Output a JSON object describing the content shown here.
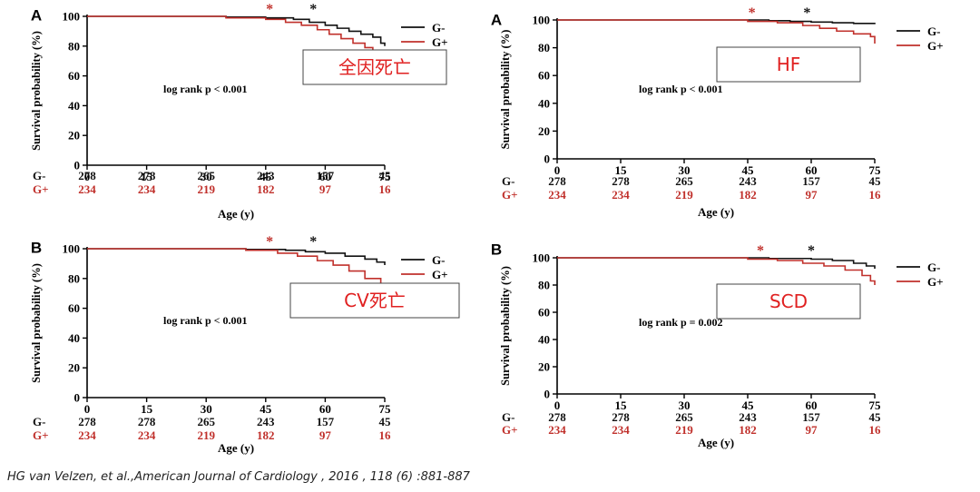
{
  "colors": {
    "g_minus": "#111111",
    "g_plus": "#c0302b",
    "box_text": "#e02020",
    "box_border": "#444444"
  },
  "citation": "HG van Velzen, et al.,American Journal of Cardiology , 2016 , 118 (6) :881-887",
  "chart_data": [
    {
      "type": "line",
      "panel_letter": "A",
      "box_label": "全因死亡",
      "ylabel": "Survival probability (%)",
      "xlabel": "Age (y)",
      "xlim": [
        0,
        75
      ],
      "ylim": [
        0,
        100
      ],
      "x_ticks": [
        0,
        15,
        30,
        45,
        60,
        75
      ],
      "y_ticks": [
        0,
        20,
        40,
        60,
        80,
        100
      ],
      "annotation": "log rank p < 0.001",
      "legend": [
        "G-",
        "G+"
      ],
      "risk_table": {
        "G-": [
          278,
          278,
          265,
          243,
          157,
          45
        ],
        "G+": [
          234,
          234,
          219,
          182,
          97,
          16
        ]
      },
      "markers": {
        "G+": 46,
        "G-": 57
      },
      "series": [
        {
          "name": "G-",
          "x": [
            0,
            20,
            35,
            45,
            52,
            56,
            60,
            63,
            66,
            69,
            72,
            74,
            75
          ],
          "y": [
            100,
            100,
            99.5,
            99,
            98,
            96,
            94,
            92,
            90,
            88,
            86,
            82,
            80
          ]
        },
        {
          "name": "G+",
          "x": [
            0,
            25,
            35,
            45,
            50,
            54,
            58,
            61,
            64,
            67,
            70,
            72,
            74
          ],
          "y": [
            100,
            100,
            99,
            98,
            96,
            94,
            91,
            88,
            85,
            82,
            79,
            76,
            74
          ]
        }
      ]
    },
    {
      "type": "line",
      "panel_letter": "A",
      "box_label": "HF",
      "ylabel": "Survival probability (%)",
      "xlabel": "Age (y)",
      "xlim": [
        0,
        75
      ],
      "ylim": [
        0,
        100
      ],
      "x_ticks": [
        0,
        15,
        30,
        45,
        60,
        75
      ],
      "y_ticks": [
        0,
        20,
        40,
        60,
        80,
        100
      ],
      "annotation": "log rank p < 0.001",
      "legend": [
        "G-",
        "G+"
      ],
      "risk_table": {
        "G-": [
          278,
          278,
          265,
          243,
          157,
          45
        ],
        "G+": [
          234,
          234,
          219,
          182,
          97,
          16
        ]
      },
      "markers": {
        "G+": 46,
        "G-": 59
      },
      "series": [
        {
          "name": "G-",
          "x": [
            0,
            40,
            50,
            55,
            60,
            65,
            70,
            75
          ],
          "y": [
            100,
            100,
            99.5,
            99,
            98.5,
            98,
            97.5,
            97
          ]
        },
        {
          "name": "G+",
          "x": [
            0,
            35,
            45,
            52,
            58,
            62,
            66,
            70,
            74,
            75
          ],
          "y": [
            100,
            100,
            99,
            98,
            96,
            94,
            92,
            90,
            88,
            83
          ]
        }
      ]
    },
    {
      "type": "line",
      "panel_letter": "B",
      "box_label": "CV死亡",
      "ylabel": "Survival probability (%)",
      "xlabel": "Age (y)",
      "xlim": [
        0,
        75
      ],
      "ylim": [
        0,
        100
      ],
      "x_ticks": [
        0,
        15,
        30,
        45,
        60,
        75
      ],
      "y_ticks": [
        0,
        20,
        40,
        60,
        80,
        100
      ],
      "annotation": "log rank p < 0.001",
      "legend": [
        "G-",
        "G+"
      ],
      "risk_table": {
        "G-": [
          278,
          278,
          265,
          243,
          157,
          45
        ],
        "G+": [
          234,
          234,
          219,
          182,
          97,
          16
        ]
      },
      "markers": {
        "G+": 46,
        "G-": 57
      },
      "series": [
        {
          "name": "G-",
          "x": [
            0,
            25,
            40,
            50,
            55,
            60,
            65,
            70,
            73,
            75
          ],
          "y": [
            100,
            100,
            99.5,
            99,
            98,
            97,
            95,
            93,
            91,
            89
          ]
        },
        {
          "name": "G+",
          "x": [
            0,
            25,
            40,
            48,
            53,
            58,
            62,
            66,
            70,
            74
          ],
          "y": [
            100,
            100,
            99,
            97,
            95,
            92,
            89,
            85,
            80,
            77
          ]
        }
      ]
    },
    {
      "type": "line",
      "panel_letter": "B",
      "box_label": "SCD",
      "ylabel": "Survival probability (%)",
      "xlabel": "Age (y)",
      "xlim": [
        0,
        75
      ],
      "ylim": [
        0,
        100
      ],
      "x_ticks": [
        0,
        15,
        30,
        45,
        60,
        75
      ],
      "y_ticks": [
        0,
        20,
        40,
        60,
        80,
        100
      ],
      "annotation": "log rank p = 0.002",
      "legend": [
        "G-",
        "G+"
      ],
      "risk_table": {
        "G-": [
          278,
          278,
          265,
          243,
          157,
          45
        ],
        "G+": [
          234,
          234,
          219,
          182,
          97,
          16
        ]
      },
      "markers": {
        "G+": 48,
        "G-": 60
      },
      "series": [
        {
          "name": "G-",
          "x": [
            0,
            40,
            50,
            60,
            65,
            70,
            73,
            75
          ],
          "y": [
            100,
            100,
            99.5,
            99,
            98,
            96,
            94,
            92
          ]
        },
        {
          "name": "G+",
          "x": [
            0,
            35,
            45,
            52,
            58,
            63,
            68,
            72,
            74,
            75
          ],
          "y": [
            100,
            100,
            99,
            98,
            96,
            94,
            91,
            87,
            83,
            80
          ]
        }
      ]
    }
  ]
}
